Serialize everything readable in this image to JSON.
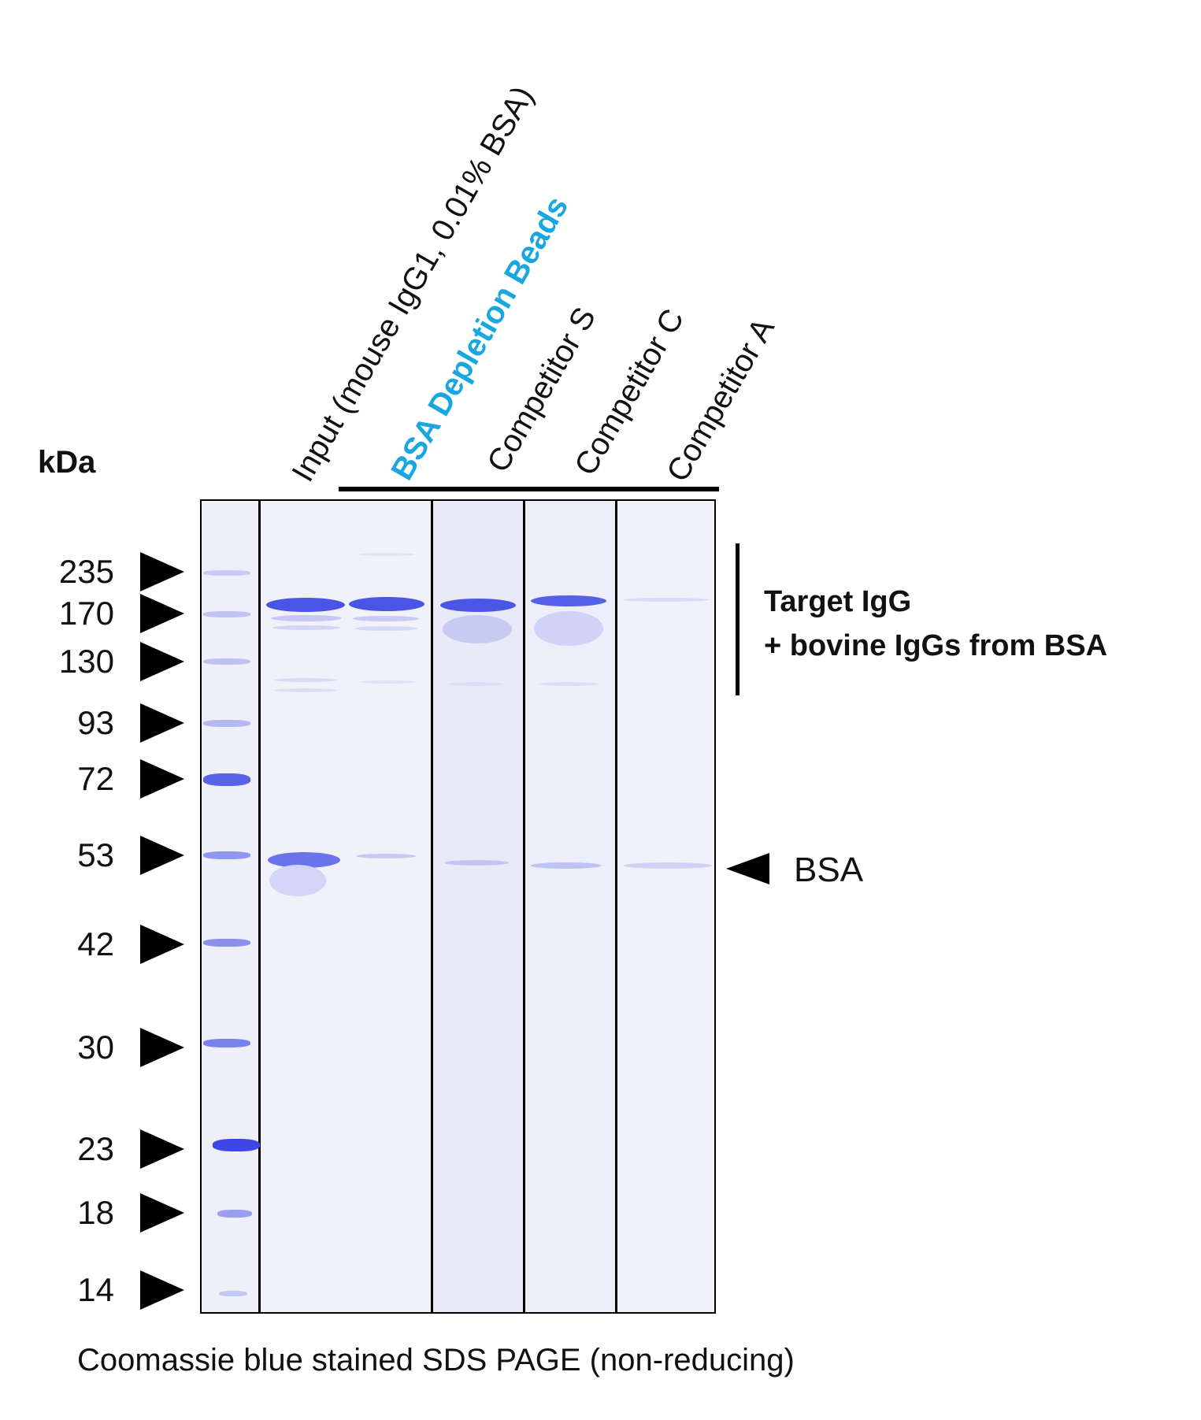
{
  "unit_label": "kDa",
  "markers": [
    "235",
    "170",
    "130",
    "93",
    "72",
    "53",
    "42",
    "30",
    "23",
    "18",
    "14"
  ],
  "lanes": [
    {
      "label": "Input (mouse IgG1, 0.01% BSA)"
    },
    {
      "label": "BSA Depletion Beads",
      "highlight_color": "#1aa7e0"
    },
    {
      "label": "Competitor S"
    },
    {
      "label": "Competitor C"
    },
    {
      "label": "Competitor A"
    }
  ],
  "annotations": {
    "igg_line1": "Target IgG",
    "igg_line2": "+ bovine IgGs from BSA",
    "bsa": "BSA"
  },
  "caption": "Coomassie blue stained SDS PAGE (non-reducing)",
  "stain_color": "#4a55e6"
}
